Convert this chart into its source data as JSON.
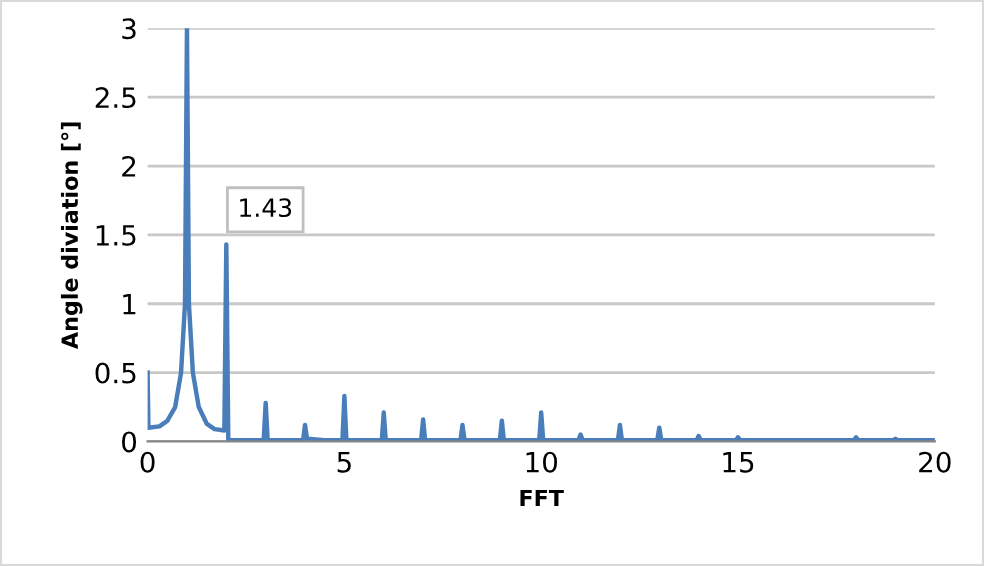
{
  "chart_data": {
    "type": "line",
    "xlabel": "FFT",
    "ylabel": "Angle diviation [°]",
    "color": "#4a7ebb",
    "x": [
      0,
      0.02,
      0.3,
      0.5,
      0.7,
      0.85,
      0.95,
      1.0,
      1.05,
      1.15,
      1.3,
      1.5,
      1.7,
      1.95,
      2.0,
      2.05,
      2.95,
      3.0,
      3.05,
      3.95,
      4.0,
      4.05,
      4.5,
      4.95,
      5.0,
      5.05,
      5.95,
      6.0,
      6.05,
      6.95,
      7.0,
      7.05,
      7.95,
      8.0,
      8.05,
      8.95,
      9.0,
      9.05,
      9.95,
      10.0,
      10.05,
      10.95,
      11.0,
      11.05,
      11.95,
      12.0,
      12.05,
      12.95,
      13.0,
      13.05,
      13.95,
      14.0,
      14.05,
      14.95,
      15.0,
      15.05,
      17.95,
      18.0,
      18.05,
      18.95,
      19.0,
      19.05,
      20.0
    ],
    "values": [
      0.5,
      0.1,
      0.11,
      0.15,
      0.25,
      0.5,
      1.0,
      3.0,
      1.0,
      0.5,
      0.25,
      0.13,
      0.09,
      0.08,
      1.43,
      0.01,
      0.01,
      0.28,
      0.01,
      0.01,
      0.12,
      0.02,
      0.01,
      0.01,
      0.33,
      0.01,
      0.01,
      0.21,
      0.01,
      0.01,
      0.16,
      0.01,
      0.01,
      0.12,
      0.01,
      0.01,
      0.15,
      0.01,
      0.01,
      0.21,
      0.01,
      0.01,
      0.05,
      0.01,
      0.01,
      0.12,
      0.01,
      0.01,
      0.1,
      0.01,
      0.01,
      0.04,
      0.01,
      0.01,
      0.03,
      0.01,
      0.01,
      0.03,
      0.01,
      0.01,
      0.02,
      0.01,
      0.01
    ],
    "xlim": [
      0,
      20
    ],
    "xticks": [
      0,
      5,
      10,
      15,
      20
    ],
    "ylim": [
      0,
      3
    ],
    "yticks": [
      0,
      0.5,
      1,
      1.5,
      2,
      2.5,
      3
    ],
    "grid": "y",
    "annotations": [
      {
        "text": "1.43",
        "x": 2,
        "y": 1.43
      }
    ]
  }
}
